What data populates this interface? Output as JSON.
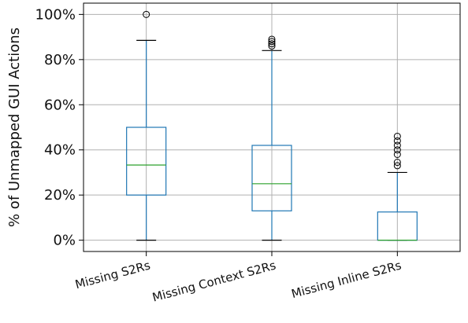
{
  "chart_data": {
    "type": "box",
    "title": "",
    "xlabel": "",
    "ylabel": "% of Unmapped GUI Actions",
    "ylim": [
      -0.05,
      1.05
    ],
    "yticks": [
      0,
      0.2,
      0.4,
      0.6,
      0.8,
      1.0
    ],
    "ytick_labels": [
      "0%",
      "20%",
      "40%",
      "60%",
      "80%",
      "100%"
    ],
    "grid": true,
    "categories": [
      "Missing S2Rs",
      "Missing Context S2Rs",
      "Missing Inline S2Rs"
    ],
    "series": [
      {
        "whisker_low": 0.0,
        "q1": 0.2,
        "median": 0.333,
        "q3": 0.5,
        "whisker_high": 0.885,
        "outliers": [
          1.0
        ]
      },
      {
        "whisker_low": 0.0,
        "q1": 0.13,
        "median": 0.25,
        "q3": 0.42,
        "whisker_high": 0.84,
        "outliers": [
          0.86,
          0.87,
          0.88,
          0.89
        ]
      },
      {
        "whisker_low": 0.0,
        "q1": 0.0,
        "median": 0.0,
        "q3": 0.125,
        "whisker_high": 0.3,
        "outliers": [
          0.33,
          0.345,
          0.38,
          0.4,
          0.42,
          0.44,
          0.46
        ]
      }
    ],
    "colors": {
      "box": "#1f77b4",
      "median": "#2ca02c",
      "whisker": "#1f77b4",
      "cap": "#000000",
      "grid": "#b0b0b0",
      "outlier": "#000000"
    }
  }
}
